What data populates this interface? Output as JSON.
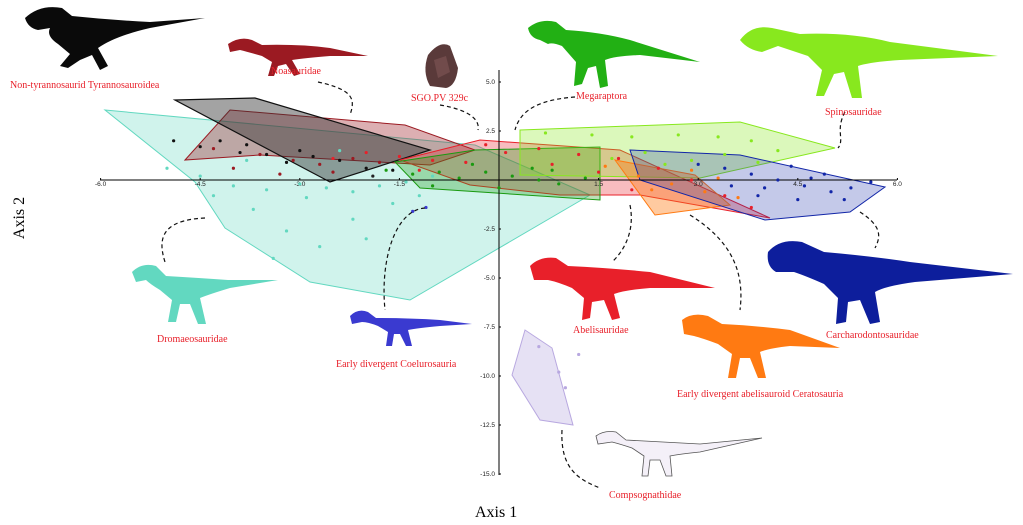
{
  "chart_data": {
    "type": "scatter",
    "xlabel": "Axis 1",
    "ylabel": "Axis 2",
    "xlim": [
      -6.0,
      6.0
    ],
    "ylim": [
      -15.0,
      6.0
    ],
    "x_ticks": [
      "-6.0",
      "-4.5",
      "-3.0",
      "-1.5",
      "1.5",
      "3.0",
      "4.5",
      "6.0"
    ],
    "y_ticks": [
      "5.0",
      "2.5",
      "-2.5",
      "-5.0",
      "-7.5",
      "-10.0",
      "-12.5",
      "-15.0"
    ],
    "grid": false,
    "series": [
      {
        "name": "Non-tyrannosaurid Tyrannosauroidea",
        "color": "#111111",
        "points": [
          [
            -4.9,
            2.0
          ],
          [
            -4.5,
            1.7
          ],
          [
            -4.2,
            2.0
          ],
          [
            -3.8,
            1.8
          ],
          [
            -3.5,
            1.3
          ],
          [
            -3.2,
            0.9
          ],
          [
            -3.0,
            1.5
          ],
          [
            -2.8,
            1.2
          ],
          [
            -2.4,
            1.0
          ],
          [
            -2.0,
            0.6
          ],
          [
            -1.6,
            0.5
          ],
          [
            -3.9,
            1.4
          ]
        ]
      },
      {
        "name": "Noasauridae",
        "color": "#9b1a22",
        "points": [
          [
            -4.3,
            1.6
          ],
          [
            -3.6,
            1.3
          ],
          [
            -3.1,
            1.0
          ],
          [
            -2.7,
            0.8
          ],
          [
            -2.2,
            1.1
          ],
          [
            -1.8,
            0.9
          ],
          [
            -3.3,
            0.3
          ],
          [
            -4.0,
            0.6
          ],
          [
            -2.5,
            0.4
          ]
        ]
      },
      {
        "name": "SGO.PV 329c",
        "color": "#222222",
        "points": [
          [
            -1.9,
            0.2
          ]
        ]
      },
      {
        "name": "Megaraptora",
        "color": "#1a9a10",
        "points": [
          [
            -1.7,
            0.5
          ],
          [
            -1.3,
            0.3
          ],
          [
            -0.9,
            0.4
          ],
          [
            -0.6,
            0.1
          ],
          [
            -0.2,
            0.4
          ],
          [
            0.2,
            0.2
          ],
          [
            0.6,
            0.0
          ],
          [
            0.9,
            -0.2
          ],
          [
            1.3,
            0.1
          ],
          [
            -1.0,
            -0.3
          ],
          [
            0.0,
            -0.4
          ],
          [
            0.5,
            0.6
          ],
          [
            -0.4,
            0.8
          ],
          [
            0.8,
            0.5
          ]
        ]
      },
      {
        "name": "Spinosauridae",
        "color": "#88e81e",
        "points": [
          [
            0.7,
            2.4
          ],
          [
            1.4,
            2.3
          ],
          [
            2.0,
            2.2
          ],
          [
            2.7,
            2.3
          ],
          [
            3.3,
            2.2
          ],
          [
            3.8,
            2.0
          ],
          [
            4.2,
            1.5
          ],
          [
            3.9,
            0.9
          ],
          [
            3.4,
            1.3
          ],
          [
            2.9,
            1.0
          ],
          [
            2.5,
            0.8
          ],
          [
            2.2,
            1.4
          ],
          [
            1.7,
            1.1
          ]
        ]
      },
      {
        "name": "Abelisauridae",
        "color": "#e8202a",
        "points": [
          [
            -2.5,
            1.1
          ],
          [
            -2.0,
            1.4
          ],
          [
            -1.5,
            1.2
          ],
          [
            -1.0,
            1.0
          ],
          [
            -0.5,
            0.9
          ],
          [
            0.1,
            1.4
          ],
          [
            0.6,
            1.6
          ],
          [
            1.2,
            1.3
          ],
          [
            1.8,
            1.1
          ],
          [
            2.4,
            0.6
          ],
          [
            2.9,
            0.0
          ],
          [
            3.4,
            -0.8
          ],
          [
            3.8,
            -1.4
          ],
          [
            2.0,
            -0.5
          ],
          [
            1.5,
            0.4
          ],
          [
            0.8,
            0.8
          ],
          [
            -0.2,
            1.8
          ],
          [
            -1.2,
            0.5
          ]
        ]
      },
      {
        "name": "Early divergent abelisauroid Ceratosauria",
        "color": "#ff7a12",
        "points": [
          [
            1.6,
            0.7
          ],
          [
            2.1,
            0.2
          ],
          [
            2.6,
            -0.2
          ],
          [
            3.1,
            -0.6
          ],
          [
            3.6,
            -0.9
          ],
          [
            3.3,
            0.1
          ],
          [
            2.9,
            0.5
          ],
          [
            2.3,
            -0.5
          ]
        ]
      },
      {
        "name": "Carcharodontosauridae",
        "color": "#1226a8",
        "points": [
          [
            3.0,
            0.8
          ],
          [
            3.4,
            0.6
          ],
          [
            3.8,
            0.3
          ],
          [
            4.2,
            0.0
          ],
          [
            4.6,
            -0.3
          ],
          [
            5.0,
            -0.6
          ],
          [
            5.3,
            -0.4
          ],
          [
            5.6,
            -0.1
          ],
          [
            4.9,
            0.3
          ],
          [
            4.4,
            0.7
          ],
          [
            3.9,
            -0.8
          ],
          [
            4.5,
            -1.0
          ],
          [
            5.2,
            -1.0
          ],
          [
            3.5,
            -0.3
          ],
          [
            4.0,
            -0.4
          ],
          [
            4.7,
            0.1
          ]
        ]
      },
      {
        "name": "Dromaeosauridae",
        "color": "#62d8c0",
        "points": [
          [
            -5.0,
            0.6
          ],
          [
            -4.5,
            0.2
          ],
          [
            -4.0,
            -0.3
          ],
          [
            -3.5,
            -0.5
          ],
          [
            -3.0,
            -0.2
          ],
          [
            -2.6,
            -0.4
          ],
          [
            -2.2,
            -0.6
          ],
          [
            -1.8,
            -0.3
          ],
          [
            -1.4,
            -0.1
          ],
          [
            -1.0,
            0.2
          ],
          [
            -3.7,
            -1.5
          ],
          [
            -3.2,
            -2.6
          ],
          [
            -2.7,
            -3.4
          ],
          [
            -2.2,
            -2.0
          ],
          [
            -2.9,
            -0.9
          ],
          [
            -4.3,
            -0.8
          ],
          [
            -1.6,
            -1.2
          ],
          [
            -3.8,
            1.0
          ],
          [
            -2.4,
            1.5
          ],
          [
            -1.2,
            -0.8
          ],
          [
            -3.4,
            -4.0
          ],
          [
            -2.0,
            -3.0
          ]
        ]
      },
      {
        "name": "Early divergent Coelurosauria",
        "color": "#3a3ad0",
        "points": [
          [
            -1.1,
            -1.4
          ],
          [
            -1.3,
            -1.6
          ]
        ]
      },
      {
        "name": "Compsognathidae",
        "color": "#b8a8e0",
        "points": [
          [
            0.6,
            -8.5
          ],
          [
            0.9,
            -9.8
          ],
          [
            1.2,
            -8.9
          ],
          [
            1.0,
            -10.6
          ]
        ]
      }
    ]
  },
  "labels": {
    "tyrannosauroidea": "Non-tyrannosaurid Tyrannosauroidea",
    "noasauridae": "Noasauridae",
    "sgo": "SGO.PV 329c",
    "megaraptora": "Megaraptora",
    "spinosauridae": "Spinosauridae",
    "dromaeosauridae": "Dromaeosauridae",
    "coelurosauria": "Early divergent Coelurosauria",
    "abelisauridae": "Abelisauridae",
    "carcharodontosauridae": "Carcharodontosauridae",
    "abelisauroid": "Early divergent abelisauroid Ceratosauria",
    "compsognathidae": "Compsognathidae"
  },
  "colors": {
    "tyrannosauroidea": "#111111",
    "noasauridae": "#9b1a22",
    "megaraptora": "#1a9a10",
    "spinosauridae": "#88e81e",
    "dromaeosauridae": "#62d8c0",
    "coelurosauria": "#3a3ad0",
    "abelisauridae": "#e8202a",
    "abelisauroid": "#ff7a12",
    "carcharodontosauridae": "#1226a8",
    "compsognathidae": "#b8a8e0",
    "label": "#e8202a"
  }
}
